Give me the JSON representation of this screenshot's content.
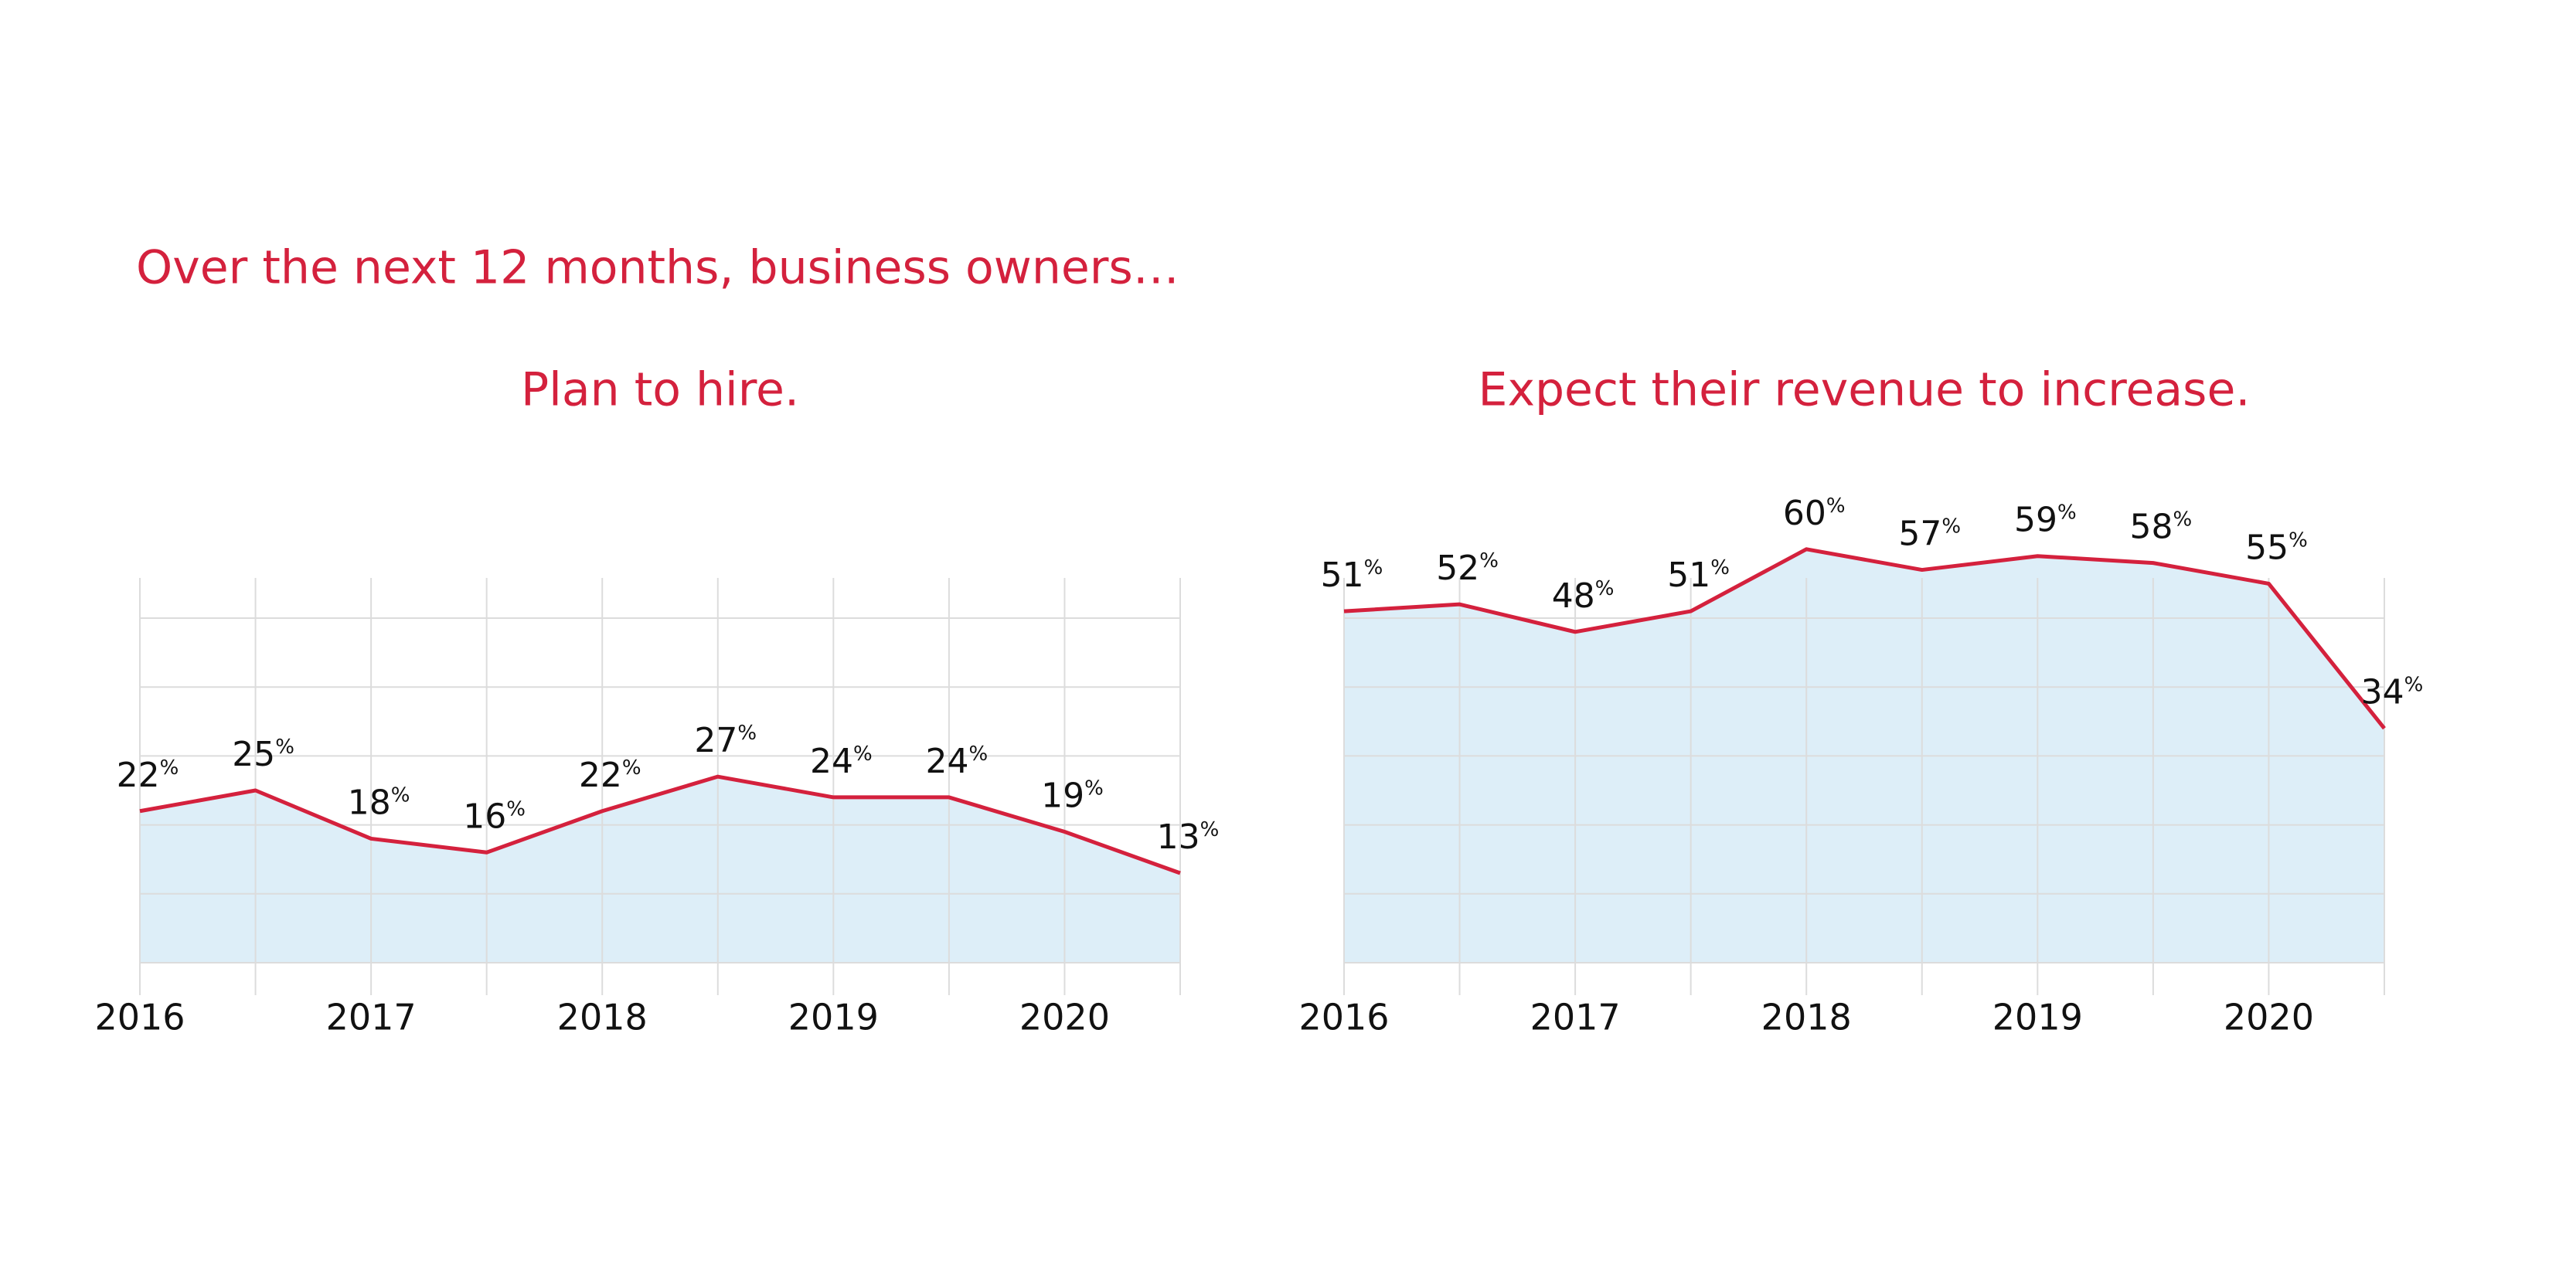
{
  "title": "Over the next 12 months, business owners…",
  "chart_data": [
    {
      "type": "area",
      "title": "Plan to hire.",
      "categories": [
        "2016",
        null,
        "2017",
        null,
        "2018",
        null,
        "2019",
        null,
        "2020",
        null
      ],
      "values": [
        22,
        25,
        18,
        16,
        22,
        27,
        24,
        24,
        19,
        13
      ],
      "value_labels": [
        "22%",
        "25%",
        "18%",
        "16%",
        "22%",
        "27%",
        "24%",
        "24%",
        "19%",
        "13%"
      ],
      "color": "#d4213d",
      "fill": "#ddeef8",
      "ylim": [
        0,
        50
      ],
      "yticks": [
        0,
        10,
        20,
        30,
        40,
        50
      ],
      "grid": true
    },
    {
      "type": "area",
      "title": "Expect their revenue to increase.",
      "categories": [
        "2016",
        null,
        "2017",
        null,
        "2018",
        null,
        "2019",
        null,
        "2020",
        null
      ],
      "values": [
        51,
        52,
        48,
        51,
        60,
        57,
        59,
        58,
        55,
        34
      ],
      "value_labels": [
        "51%",
        "52%",
        "48%",
        "51%",
        "60%",
        "57%",
        "59%",
        "58%",
        "55%",
        "34%"
      ],
      "color": "#d4213d",
      "fill": "#ddeef8",
      "ylim": [
        0,
        50
      ],
      "yticks": [
        0,
        10,
        20,
        30,
        40,
        50
      ],
      "grid": true
    }
  ]
}
